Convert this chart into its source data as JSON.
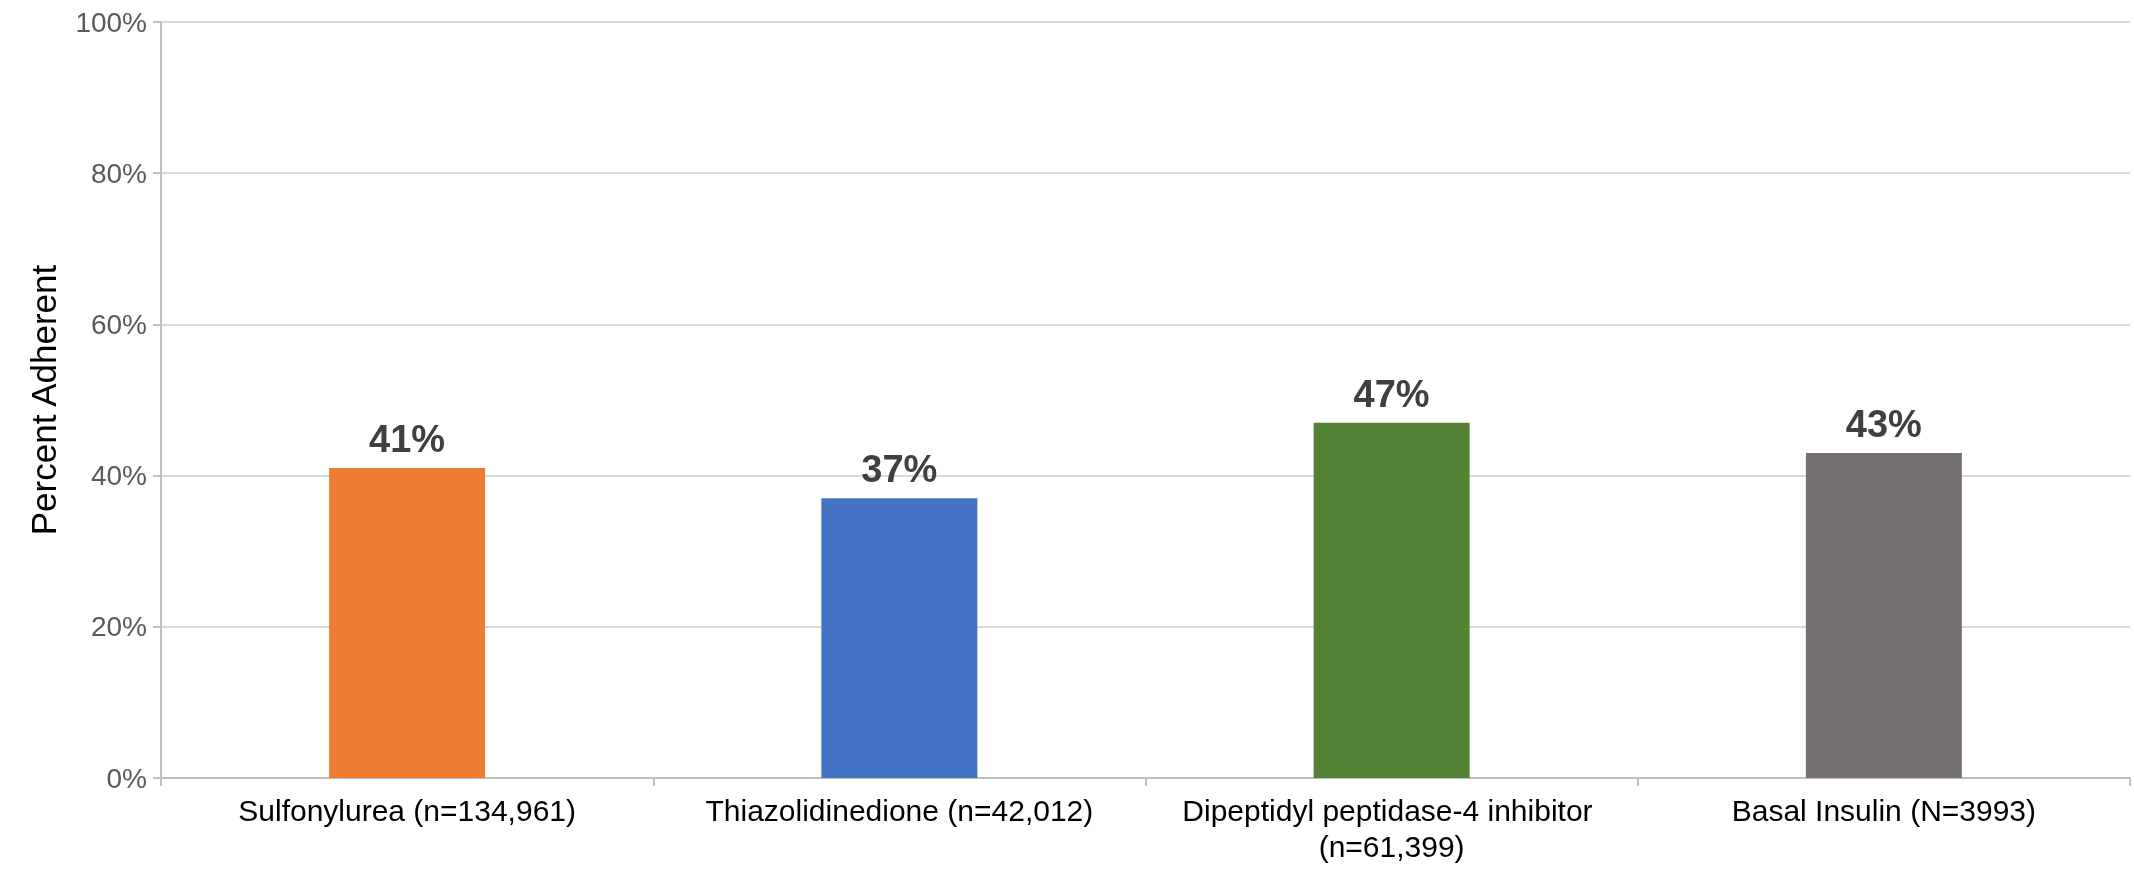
{
  "chart_data": {
    "type": "bar",
    "ylabel": "Percent Adherent",
    "categories": [
      "Sulfonylurea (n=134,961)",
      "Thiazolidinedione (n=42,012)",
      "Dipeptidyl peptidase-4 inhibitor (n=61,399)",
      "Basal Insulin (N=3993)"
    ],
    "values": [
      41,
      37,
      47,
      43
    ],
    "colors": [
      "#ed7d31",
      "#4472c4",
      "#548235",
      "#767171"
    ],
    "value_labels": [
      "41%",
      "37%",
      "47%",
      "43%"
    ],
    "ylim": [
      0,
      100
    ],
    "yticks": [
      {
        "value": 0,
        "label": "0%"
      },
      {
        "value": 20,
        "label": "20%"
      },
      {
        "value": 40,
        "label": "40%"
      },
      {
        "value": 60,
        "label": "60%"
      },
      {
        "value": 80,
        "label": "80%"
      },
      {
        "value": 100,
        "label": "100%"
      }
    ],
    "grid": "y"
  }
}
